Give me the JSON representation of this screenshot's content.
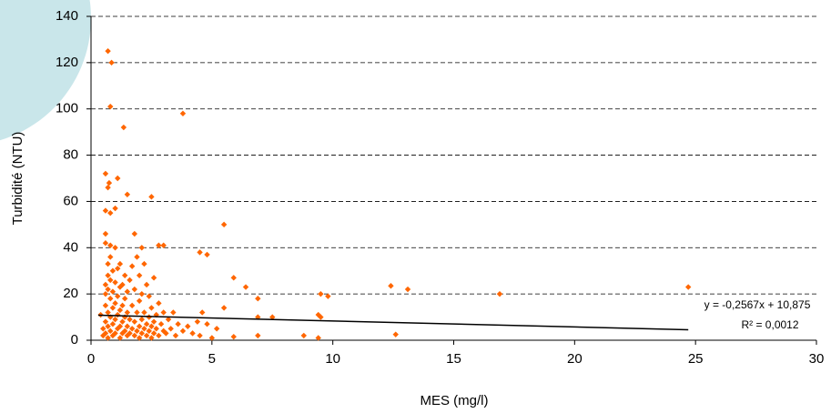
{
  "chart_data": {
    "type": "scatter",
    "x_label": "MES (mg/l)",
    "y_label": "Turbidité (NTU)",
    "color": "#ff6600",
    "grid": true,
    "xlim": [
      0,
      30
    ],
    "xticks": [
      0,
      5,
      10,
      15,
      20,
      25,
      30
    ],
    "ylim": [
      0,
      140
    ],
    "yticks": [
      0,
      20,
      40,
      60,
      80,
      100,
      120,
      140
    ],
    "x": [
      0.7,
      0.85,
      0.8,
      1.35,
      3.8,
      0.6,
      0.75,
      0.7,
      1.1,
      0.6,
      0.8,
      1.0,
      1.5,
      2.5,
      1.8,
      0.6,
      0.6,
      0.8,
      2.1,
      2.8,
      3.0,
      4.5,
      4.8,
      5.5,
      5.9,
      6.4,
      6.9,
      9.5,
      9.8,
      12.4,
      13.1,
      16.9,
      24.7,
      12.6,
      9.4,
      9.5,
      8.8,
      9.4,
      6.9,
      6.9,
      7.5,
      5.9,
      5.2,
      5.0,
      5.5,
      4.6,
      4.8,
      0.4,
      0.5,
      0.5,
      0.6,
      0.6,
      0.6,
      0.6,
      0.6,
      0.7,
      0.7,
      0.7,
      0.7,
      0.7,
      0.7,
      0.8,
      0.8,
      0.8,
      0.8,
      0.8,
      0.9,
      0.9,
      0.9,
      0.9,
      0.9,
      1.0,
      1.0,
      1.0,
      1.0,
      1.0,
      1.1,
      1.1,
      1.1,
      1.1,
      1.2,
      1.2,
      1.2,
      1.2,
      1.2,
      1.3,
      1.3,
      1.3,
      1.3,
      1.4,
      1.4,
      1.4,
      1.4,
      1.5,
      1.5,
      1.5,
      1.5,
      1.6,
      1.6,
      1.6,
      1.7,
      1.7,
      1.7,
      1.8,
      1.8,
      1.8,
      1.9,
      1.9,
      1.9,
      2.0,
      2.0,
      2.0,
      2.0,
      2.1,
      2.1,
      2.1,
      2.2,
      2.2,
      2.2,
      2.3,
      2.3,
      2.3,
      2.4,
      2.4,
      2.4,
      2.5,
      2.5,
      2.5,
      2.6,
      2.6,
      2.6,
      2.7,
      2.7,
      2.8,
      2.8,
      2.9,
      3.0,
      3.0,
      3.1,
      3.2,
      3.3,
      3.4,
      3.5,
      3.6,
      3.8,
      4.0,
      4.2,
      4.4,
      4.5
    ],
    "values": [
      125,
      120,
      101,
      92,
      98,
      72,
      68,
      66,
      70,
      56,
      55,
      57,
      63,
      62,
      46,
      46,
      42,
      41,
      40,
      41,
      41,
      38,
      37,
      50,
      27,
      23,
      18,
      20,
      19,
      23.5,
      22,
      20,
      23,
      2.5,
      11,
      10,
      2,
      1,
      10,
      2,
      10,
      1.5,
      5,
      1,
      14,
      12,
      7,
      11,
      5,
      2,
      24,
      20,
      15,
      8,
      3,
      33,
      28,
      22,
      12,
      6,
      1,
      36,
      26,
      18,
      10,
      4,
      30,
      21,
      14,
      7,
      2,
      40,
      25,
      16,
      9,
      3,
      31,
      19,
      11,
      5,
      33,
      23,
      13,
      6,
      1,
      24,
      15,
      8,
      3,
      28,
      18,
      10,
      4,
      21,
      12,
      6,
      2,
      26,
      9,
      3,
      32,
      15,
      5,
      22,
      8,
      2,
      36,
      12,
      4,
      28,
      17,
      6,
      1,
      20,
      9,
      3,
      33,
      12,
      5,
      24,
      7,
      2,
      19,
      10,
      4,
      14,
      6,
      1,
      27,
      8,
      3,
      11,
      5,
      16,
      2,
      7,
      12,
      4,
      3,
      9,
      5,
      12,
      2,
      7,
      4,
      6,
      3,
      8,
      2
    ],
    "trendline": {
      "x": [
        0.3,
        24.7
      ],
      "slope": -0.2567,
      "intercept": 10.875,
      "equation": "y = -0,2567x + 10,875",
      "r2_label": "R² = 0,0012"
    }
  }
}
